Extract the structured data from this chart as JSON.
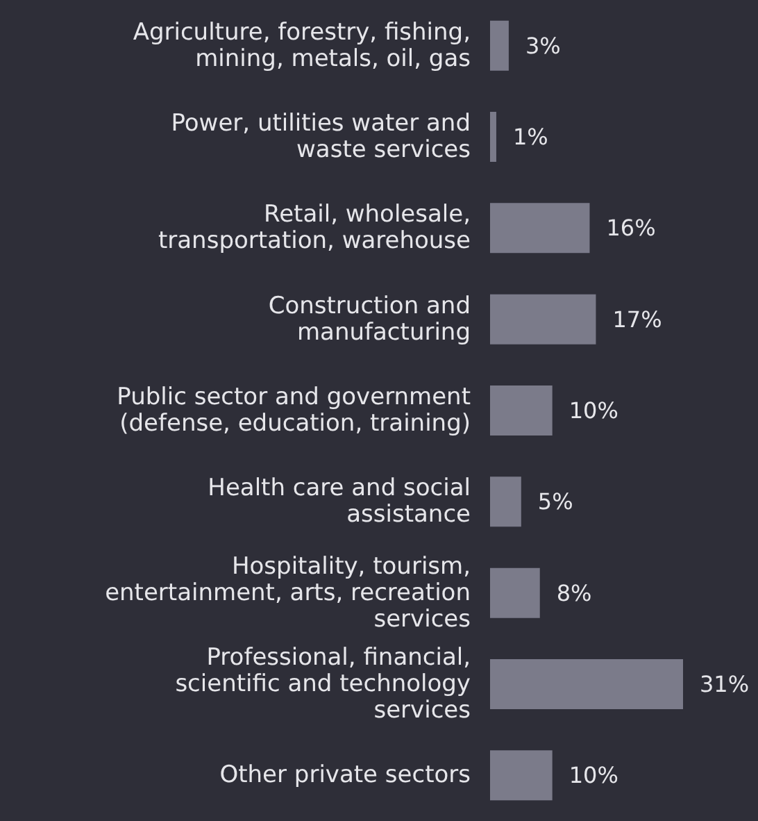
{
  "chart_data": {
    "type": "bar",
    "orientation": "horizontal",
    "categories": [
      "Agriculture, forestry, fishing,\nmining, metals, oil, gas",
      "Power, utilities water and\nwaste services",
      "Retail, wholesale,\ntransportation, warehouse",
      "Construction and\nmanufacturing",
      "Public sector and government\n(defense, education, training)",
      "Health care and social\nassistance",
      "Hospitality, tourism,\nentertainment, arts, recreation\nservices",
      "Professional, financial,\nscientific and technology\nservices",
      "Other private sectors"
    ],
    "values": [
      3,
      1,
      16,
      17,
      10,
      5,
      8,
      31,
      10
    ],
    "value_labels": [
      "3%",
      "1%",
      "16%",
      "17%",
      "10%",
      "5%",
      "8%",
      "31%",
      "10%"
    ],
    "color": "#7b7b8a"
  }
}
